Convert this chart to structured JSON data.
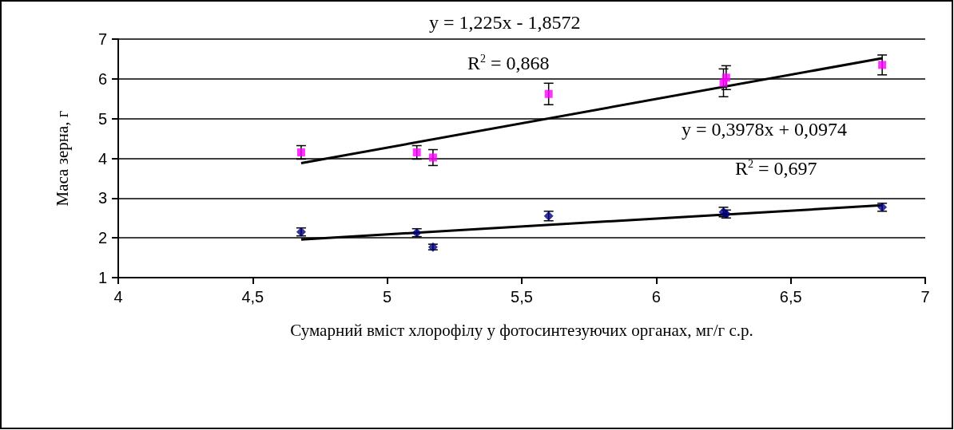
{
  "chart_data": {
    "type": "scatter",
    "xlabel": "Сумарний вміст хлорофілу у фотосинтезуючих органах, мг/г с.р.",
    "ylabel": "Маса зерна, г",
    "xlim": [
      4,
      7
    ],
    "xticks": [
      4,
      {
        "value": 4.5,
        "label": "4,5"
      },
      5,
      {
        "value": 5.5,
        "label": "5,5"
      },
      6,
      {
        "value": 6.5,
        "label": "6,5"
      },
      7
    ],
    "ylim": [
      1,
      7
    ],
    "yticks": [
      1,
      2,
      3,
      4,
      5,
      6,
      7
    ],
    "grid": "y",
    "series": [
      {
        "marker": "square",
        "color": "#ff00ff",
        "x": [
          4.68,
          5.11,
          5.17,
          5.6,
          6.25,
          6.26,
          6.84
        ],
        "values": [
          4.15,
          4.15,
          4.02,
          5.62,
          5.9,
          6.03,
          6.35
        ],
        "errors": [
          0.17,
          0.17,
          0.2,
          0.27,
          0.35,
          0.3,
          0.25
        ]
      },
      {
        "marker": "diamond",
        "color": "#000080",
        "x": [
          4.68,
          5.11,
          5.17,
          5.6,
          6.25,
          6.26,
          6.84
        ],
        "values": [
          2.15,
          2.13,
          1.77,
          2.55,
          2.65,
          2.6,
          2.77
        ],
        "errors": [
          0.1,
          0.1,
          0.07,
          0.12,
          0.12,
          0.1,
          0.1
        ]
      },
      {
        "type": "line",
        "color": "#000000",
        "marker": "none",
        "x": [
          4.68,
          6.84
        ],
        "values": [
          3.88,
          6.52
        ]
      },
      {
        "type": "line",
        "color": "#000000",
        "marker": "none",
        "x": [
          4.68,
          6.84
        ],
        "values": [
          1.96,
          2.82
        ]
      }
    ],
    "annotations": [
      "y = 1,225x - 1,8572",
      "R$^{2}$ = 0,868",
      "y = 0,3978x + 0,0974",
      "R$^{2}$ = 0,697"
    ]
  }
}
